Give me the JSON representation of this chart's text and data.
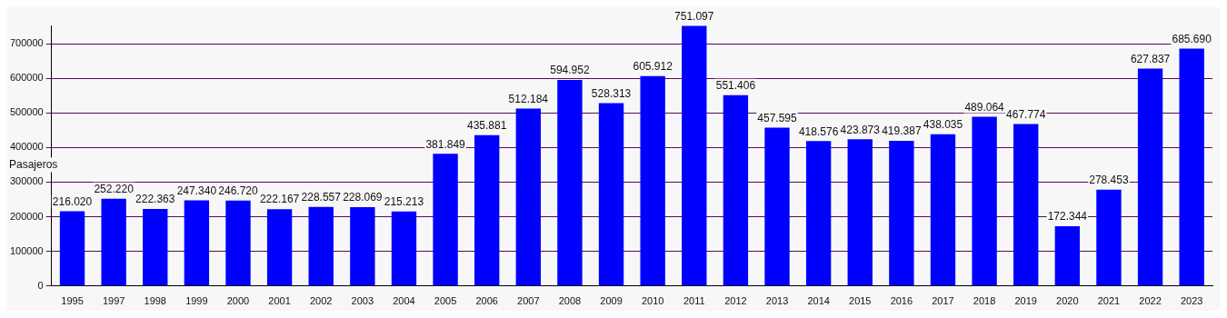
{
  "chart_data": {
    "type": "bar",
    "ylabel": "Pasajeros",
    "categories": [
      "1995",
      "1997",
      "1998",
      "1999",
      "2000",
      "2001",
      "2002",
      "2003",
      "2004",
      "2005",
      "2006",
      "2007",
      "2008",
      "2009",
      "2010",
      "2011",
      "2012",
      "2013",
      "2014",
      "2015",
      "2016",
      "2017",
      "2018",
      "2019",
      "2020",
      "2021",
      "2022",
      "2023"
    ],
    "values": [
      216020,
      252220,
      222363,
      247340,
      246720,
      222167,
      228557,
      228069,
      215213,
      381849,
      435881,
      512184,
      594952,
      528313,
      605912,
      751097,
      551406,
      457595,
      418576,
      423873,
      419387,
      438035,
      489064,
      467774,
      172344,
      278453,
      627837,
      685690
    ],
    "value_labels": [
      "216.020",
      "252.220",
      "222.363",
      "247.340",
      "246.720",
      "222.167",
      "228.557",
      "228.069",
      "215.213",
      "381.849",
      "435.881",
      "512.184",
      "594.952",
      "528.313",
      "605.912",
      "751.097",
      "551.406",
      "457.595",
      "418.576",
      "423.873",
      "419.387",
      "438.035",
      "489.064",
      "467.774",
      "172.344",
      "278.453",
      "627.837",
      "685.690"
    ],
    "color": "#0000ff",
    "ylim": [
      0,
      752500
    ],
    "yticks": [
      0,
      100000,
      200000,
      300000,
      400000,
      500000,
      600000,
      700000
    ],
    "grid": "y",
    "legend": false
  }
}
